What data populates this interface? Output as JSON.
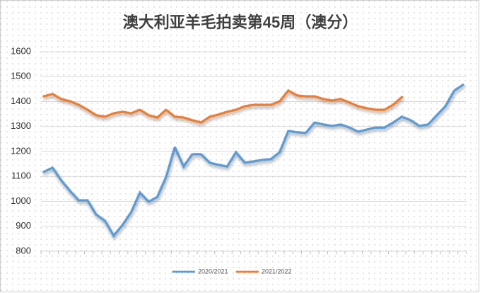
{
  "chart_data": {
    "type": "line",
    "title": "澳大利亚羊毛拍卖第45周（澳分）",
    "categories": [
      null,
      null,
      null,
      null,
      null,
      null,
      null,
      null,
      null,
      null,
      null,
      null,
      null,
      null,
      null,
      null,
      null,
      null,
      null,
      null,
      null,
      null,
      null,
      null,
      null,
      null,
      null,
      null,
      null,
      null,
      null,
      null,
      null,
      null,
      null,
      null,
      null,
      null,
      null,
      null,
      null,
      null,
      null,
      null,
      null,
      null,
      null,
      null,
      null
    ],
    "series": [
      {
        "name": "2020/2021",
        "color": "#5b9bd5",
        "values": [
          1118,
          1135,
          1084,
          1041,
          1004,
          1004,
          947,
          922,
          862,
          905,
          956,
          1035,
          998,
          1018,
          1098,
          1217,
          1140,
          1189,
          1189,
          1155,
          1146,
          1140,
          1197,
          1155,
          1160,
          1166,
          1169,
          1197,
          1282,
          1277,
          1274,
          1316,
          1308,
          1302,
          1308,
          1296,
          1279,
          1288,
          1296,
          1296,
          1316,
          1339,
          1325,
          1302,
          1308,
          1345,
          1382,
          1444,
          1467
        ]
      },
      {
        "name": "2021/2022",
        "color": "#ed7d31",
        "values": [
          1421,
          1430,
          1410,
          1401,
          1387,
          1367,
          1345,
          1339,
          1353,
          1359,
          1353,
          1367,
          1345,
          1336,
          1367,
          1339,
          1336,
          1325,
          1316,
          1339,
          1348,
          1359,
          1367,
          1381,
          1387,
          1387,
          1387,
          1401,
          1444,
          1424,
          1421,
          1421,
          1410,
          1404,
          1410,
          1396,
          1381,
          1373,
          1367,
          1367,
          1387,
          1418,
          null,
          null,
          null,
          null,
          null,
          null,
          null
        ]
      }
    ],
    "ylim": [
      800,
      1600
    ],
    "yticks": [
      800,
      900,
      1000,
      1100,
      1200,
      1300,
      1400,
      1500,
      1600
    ],
    "grid": true,
    "legend": "bottom"
  }
}
